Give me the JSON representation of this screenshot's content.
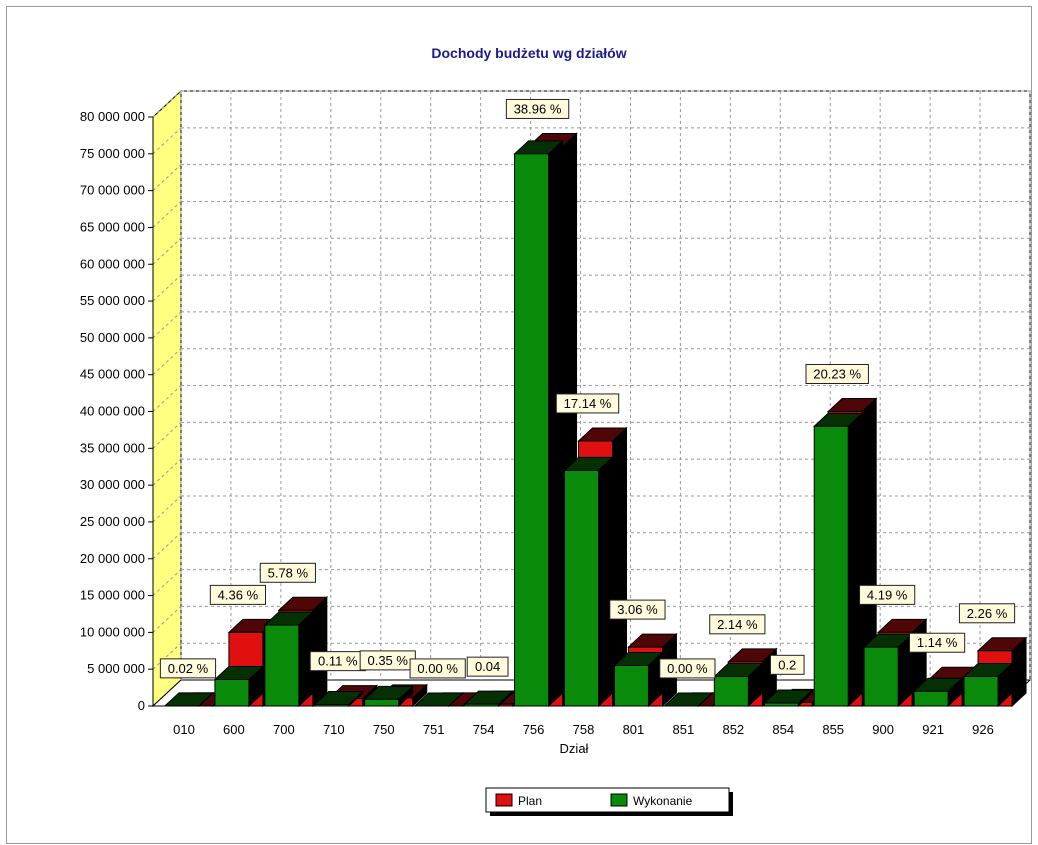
{
  "chart_data": {
    "type": "bar",
    "title": "Dochody budżetu wg działów",
    "xlabel": "Dział",
    "ylabel": "",
    "ylim": [
      0,
      80000000
    ],
    "y_ticks": [
      {
        "value": 0,
        "label": "0"
      },
      {
        "value": 5000000,
        "label": "5 000 000"
      },
      {
        "value": 10000000,
        "label": "10 000 000"
      },
      {
        "value": 15000000,
        "label": "15 000 000"
      },
      {
        "value": 20000000,
        "label": "20 000 000"
      },
      {
        "value": 25000000,
        "label": "25 000 000"
      },
      {
        "value": 30000000,
        "label": "30 000 000"
      },
      {
        "value": 35000000,
        "label": "35 000 000"
      },
      {
        "value": 40000000,
        "label": "40 000 000"
      },
      {
        "value": 45000000,
        "label": "45 000 000"
      },
      {
        "value": 50000000,
        "label": "50 000 000"
      },
      {
        "value": 55000000,
        "label": "55 000 000"
      },
      {
        "value": 60000000,
        "label": "60 000 000"
      },
      {
        "value": 65000000,
        "label": "65 000 000"
      },
      {
        "value": 70000000,
        "label": "70 000 000"
      },
      {
        "value": 75000000,
        "label": "75 000 000"
      },
      {
        "value": 80000000,
        "label": "80 000 000"
      }
    ],
    "categories": [
      "010",
      "600",
      "700",
      "710",
      "750",
      "751",
      "754",
      "756",
      "758",
      "801",
      "851",
      "852",
      "854",
      "855",
      "900",
      "921",
      "926"
    ],
    "series": [
      {
        "name": "Plan",
        "color": "#e01010",
        "values": [
          20000,
          10000000,
          13000000,
          1000000,
          1100000,
          10000,
          250000,
          76000000,
          36000000,
          8000000,
          10000,
          6000000,
          500000,
          40000000,
          10000000,
          3500000,
          7500000
        ]
      },
      {
        "name": "Wykonanie",
        "color": "#0a8a0a",
        "values": [
          20000,
          3600000,
          11000000,
          200000,
          900000,
          5000,
          250000,
          75000000,
          32000000,
          5500000,
          5000,
          4000000,
          400000,
          38000000,
          8000000,
          2000000,
          4000000
        ]
      }
    ],
    "data_labels": [
      "0.02 %",
      "4.36 %",
      "5.78 %",
      "0.11 %",
      "0.35 %",
      "0.00 %",
      "0.04",
      "38.96 %",
      "17.14 %",
      "3.06 %",
      "0.00 %",
      "2.14 %",
      "0.2",
      "20.23 %",
      "4.19 %",
      "1.14 %",
      "2.26 %"
    ],
    "legend_position": "bottom",
    "grid": true
  }
}
